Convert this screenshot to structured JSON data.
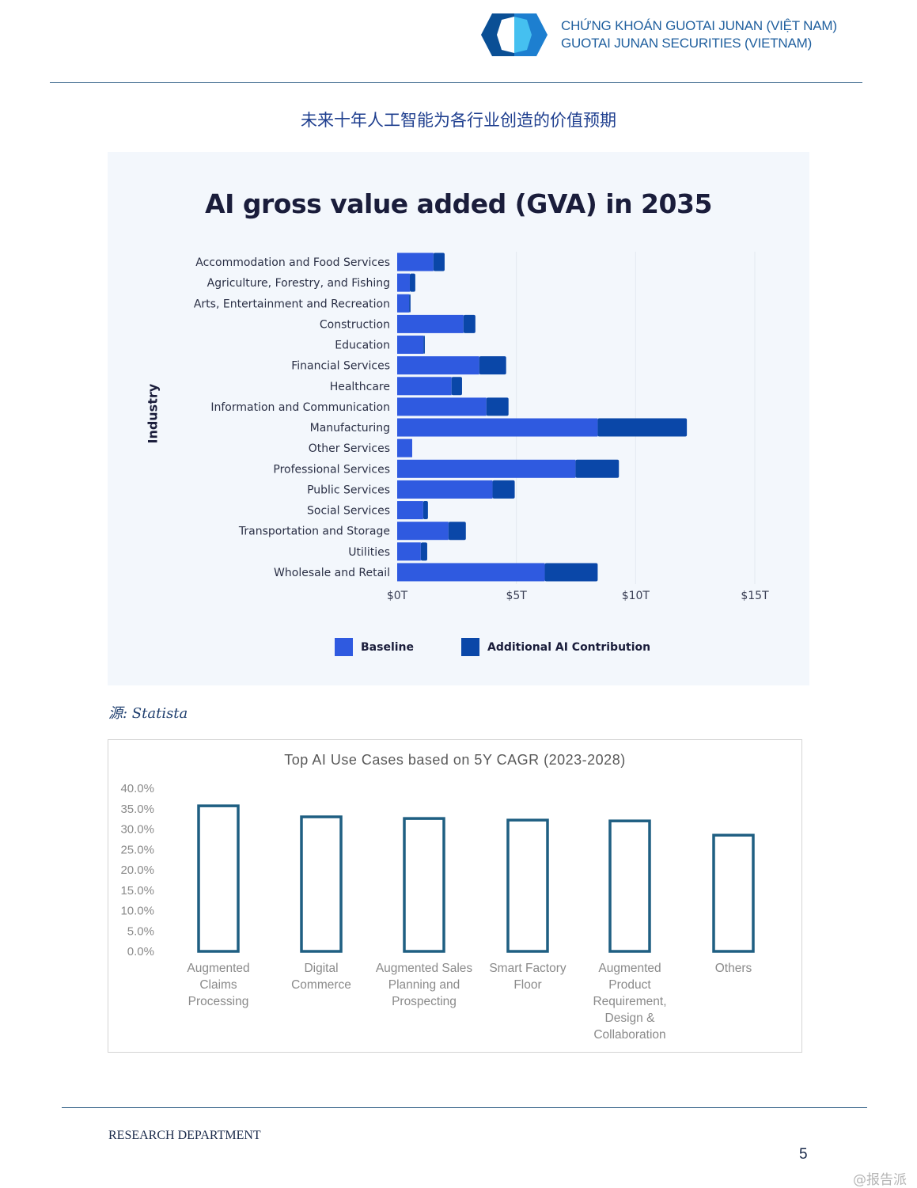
{
  "header": {
    "brand_line1": "CHỨNG KHOÁN GUOTAI JUNAN (VIỆT NAM)",
    "brand_line2": "GUOTAI JUNAN SECURITIES (VIETNAM)",
    "logo_colors": [
      "#0a4f95",
      "#1d7fd0",
      "#45c0f0"
    ]
  },
  "section_title": "未来十年人工智能为各行业创造的价值预期",
  "source": "源: Statista",
  "chart_data": [
    {
      "type": "bar",
      "orientation": "horizontal",
      "stacked": true,
      "title": "AI gross value added (GVA) in 2035",
      "xlabel": "",
      "ylabel": "Industry",
      "xlim": [
        0,
        15
      ],
      "x_ticks": [
        "$0T",
        "$5T",
        "$10T",
        "$15T"
      ],
      "x_tick_values": [
        0,
        5,
        10,
        15
      ],
      "grid": true,
      "legend_position": "bottom",
      "categories": [
        "Accommodation and Food Services",
        "Agriculture, Forestry, and Fishing",
        "Arts, Entertainment and Recreation",
        "Construction",
        "Education",
        "Financial Services",
        "Healthcare",
        "Information and Communication",
        "Manufacturing",
        "Other Services",
        "Professional Services",
        "Public Services",
        "Social Services",
        "Transportation and Storage",
        "Utilities",
        "Wholesale and Retail"
      ],
      "series": [
        {
          "name": "Baseline",
          "color": "#2f5ae0",
          "values": [
            1.52,
            0.53,
            0.5,
            2.78,
            1.1,
            3.44,
            2.28,
            3.74,
            8.41,
            0.63,
            7.48,
            4.0,
            1.09,
            2.15,
            0.99,
            6.19
          ]
        },
        {
          "name": "Additional AI Contribution",
          "color": "#0a47a8",
          "values": [
            0.47,
            0.23,
            0.06,
            0.5,
            0.06,
            1.13,
            0.44,
            0.93,
            3.74,
            0.0,
            1.82,
            0.93,
            0.2,
            0.73,
            0.27,
            2.22
          ]
        }
      ]
    },
    {
      "type": "bar",
      "title": "Top AI Use Cases based on 5Y CAGR (2023-2028)",
      "xlabel": "",
      "ylabel": "",
      "ylim": [
        0,
        40
      ],
      "y_ticks": [
        "0.0%",
        "5.0%",
        "10.0%",
        "15.0%",
        "20.0%",
        "25.0%",
        "30.0%",
        "35.0%",
        "40.0%"
      ],
      "y_tick_values": [
        0,
        5,
        10,
        15,
        20,
        25,
        30,
        35,
        40
      ],
      "grid": false,
      "categories": [
        "Augmented\nClaims\nProcessing",
        "Digital\nCommerce",
        "Augmented Sales\nPlanning and\nProspecting",
        "Smart Factory\nFloor",
        "Augmented\nProduct\nRequirement,\nDesign &\nCollaboration",
        "Others"
      ],
      "values": [
        35.7,
        33.0,
        32.6,
        32.2,
        32.0,
        28.5
      ],
      "bar_outline_color": "#1f5f82"
    }
  ],
  "footer": {
    "department": "RESEARCH DEPARTMENT",
    "page_number": "5",
    "watermark": "@报告派"
  }
}
